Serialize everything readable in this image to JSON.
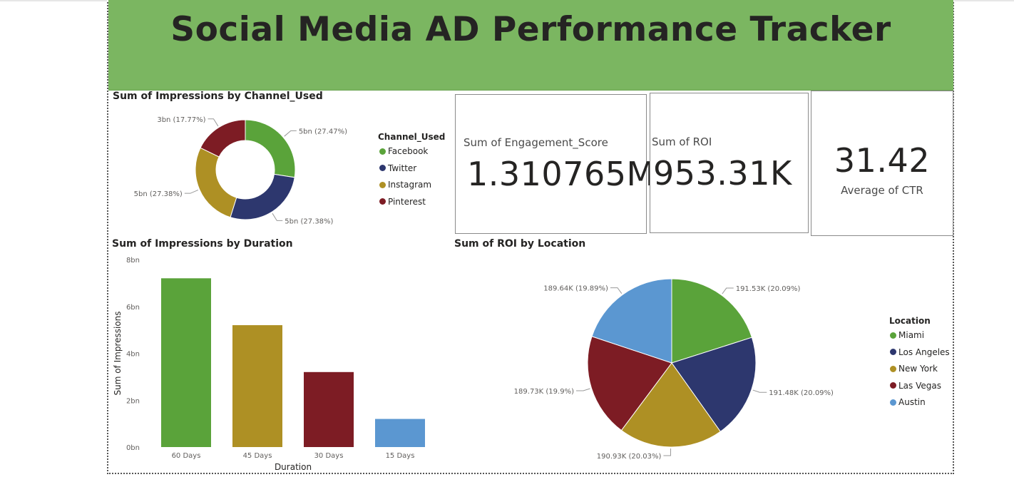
{
  "header": {
    "title": "Social Media AD Performance Tracker"
  },
  "donut": {
    "title": "Sum of Impressions by Channel_Used",
    "legend_title": "Channel_Used",
    "chart_data": {
      "type": "pie",
      "title": "Sum of Impressions by Channel_Used",
      "categories": [
        "Facebook",
        "Twitter",
        "Instagram",
        "Pinterest"
      ],
      "values": [
        27.47,
        27.38,
        27.38,
        17.77
      ],
      "labels": [
        "5bn (27.47%)",
        "5bn (27.38%)",
        "5bn (27.38%)",
        "3bn (17.77%)"
      ],
      "colors": [
        "#5aa33a",
        "#2d376e",
        "#ae9024",
        "#7d1c24"
      ]
    }
  },
  "kpis": {
    "engagement": {
      "label": "Sum of Engagement_Score",
      "value": "1.310765M"
    },
    "roi": {
      "label": "Sum of ROI",
      "value": "953.31K"
    },
    "ctr": {
      "label": "Average of CTR",
      "value": "31.42"
    }
  },
  "bar": {
    "title": "Sum of Impressions by Duration",
    "chart_data": {
      "type": "bar",
      "title": "Sum of Impressions by Duration",
      "categories": [
        "60 Days",
        "45 Days",
        "30 Days",
        "15 Days"
      ],
      "values": [
        7.2,
        5.2,
        3.2,
        1.2
      ],
      "colors": [
        "#5aa33a",
        "#ae9024",
        "#7d1c24",
        "#5b97d1"
      ],
      "xlabel": "Duration",
      "ylabel": "Sum of Impressions",
      "ylim": [
        0,
        8
      ],
      "yticks": [
        "0bn",
        "2bn",
        "4bn",
        "6bn",
        "8bn"
      ],
      "ytick_values": [
        0,
        2,
        4,
        6,
        8
      ]
    }
  },
  "pie": {
    "title": "Sum of ROI by Location",
    "legend_title": "Location",
    "chart_data": {
      "type": "pie",
      "title": "Sum of ROI by Location",
      "categories": [
        "Miami",
        "Los Angeles",
        "New York",
        "Las Vegas",
        "Austin"
      ],
      "values": [
        191.53,
        191.48,
        190.93,
        189.73,
        189.64
      ],
      "labels": [
        "191.53K (20.09%)",
        "191.48K (20.09%)",
        "190.93K (20.03%)",
        "189.73K (19.9%)",
        "189.64K (19.89%)"
      ],
      "colors": [
        "#5aa33a",
        "#2d376e",
        "#ae9024",
        "#7d1c24",
        "#5b97d1"
      ]
    }
  }
}
